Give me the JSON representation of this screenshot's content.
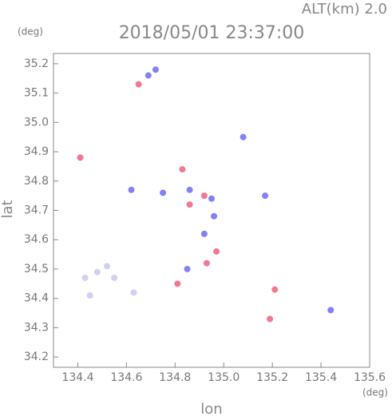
{
  "chart_data": {
    "type": "scatter",
    "title": "2018/05/01 23:37:00",
    "subtitle": "ALT(km) 2.0",
    "x_unit": "(deg)",
    "y_unit": "(deg)",
    "x_label": "lon",
    "y_label": "lat",
    "xlim": [
      134.3,
      135.6
    ],
    "ylim": [
      34.165,
      35.235
    ],
    "xticks": [
      134.4,
      134.6,
      134.8,
      {
        "value": 135,
        "label": "135.0"
      },
      135.2,
      135.4,
      135.6
    ],
    "yticks": [
      34.2,
      34.3,
      34.4,
      {
        "value": 34.5,
        "label": "34.5"
      },
      34.6,
      34.7,
      34.8,
      34.9,
      {
        "value": 35,
        "label": "35.0"
      },
      35.1,
      35.2
    ],
    "series": [
      {
        "color": "#c8c8f0",
        "x": [
          134.43,
          134.48,
          134.52,
          134.55,
          134.63,
          134.45
        ],
        "values": [
          34.47,
          34.49,
          34.51,
          34.47,
          34.42,
          34.41
        ]
      },
      {
        "color": "#6c6cf4",
        "x": [
          134.69,
          134.72,
          134.86,
          134.95,
          134.85,
          134.96,
          135.08,
          135.17,
          135.44,
          134.62,
          134.75,
          134.92
        ],
        "values": [
          35.16,
          35.18,
          34.77,
          34.74,
          34.5,
          34.68,
          34.95,
          34.75,
          34.36,
          34.77,
          34.76,
          34.62
        ]
      },
      {
        "color": "#f06080",
        "x": [
          134.65,
          134.83,
          134.86,
          134.92,
          134.97,
          135.19,
          135.21,
          134.81,
          134.93,
          134.41
        ],
        "values": [
          35.13,
          34.84,
          34.72,
          34.75,
          34.56,
          34.33,
          34.43,
          34.45,
          34.52,
          34.88
        ]
      }
    ]
  }
}
